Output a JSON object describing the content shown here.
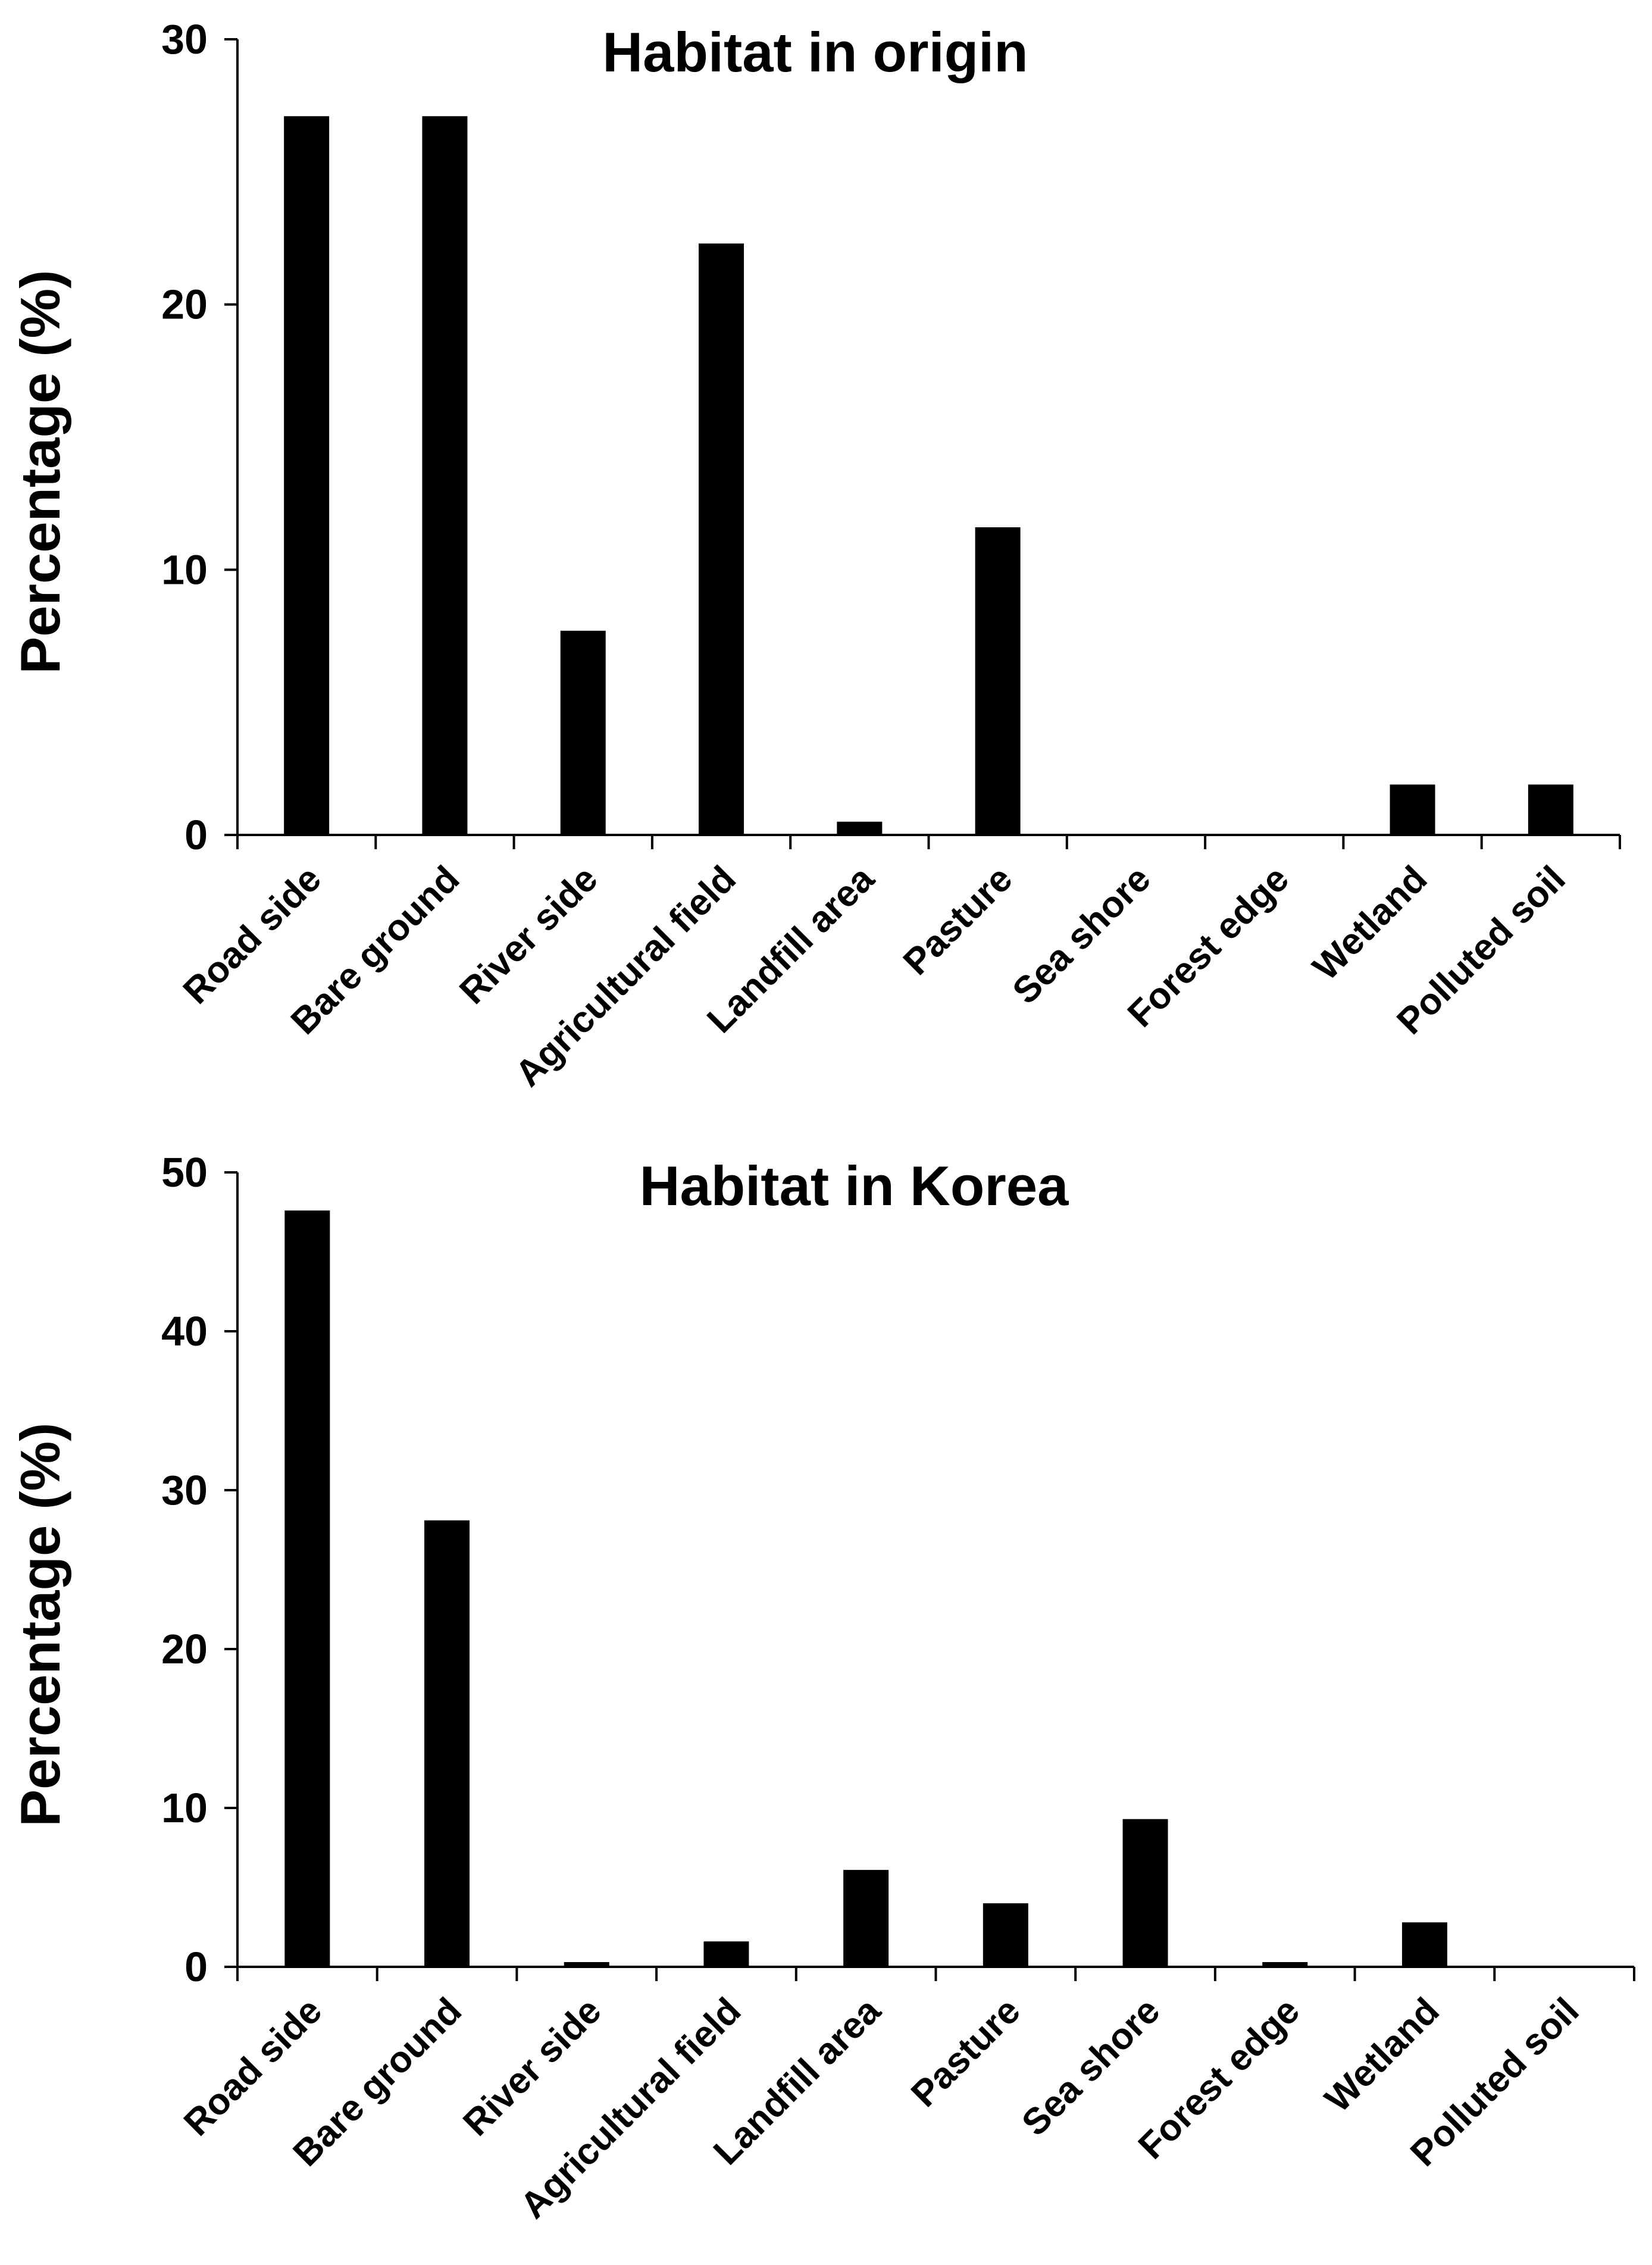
{
  "colors": {
    "bar": "#000000",
    "axis": "#000000",
    "background": "#ffffff"
  },
  "chart_data": [
    {
      "type": "bar",
      "title": "Habitat in origin",
      "xlabel": "",
      "ylabel": "Percentage (%)",
      "ylim": [
        0,
        30
      ],
      "yticks": [
        0,
        10,
        20,
        30
      ],
      "grid": false,
      "categories": [
        "Road side",
        "Bare ground",
        "River side",
        "Agricultural field",
        "Landfill area",
        "Pasture",
        "Sea shore",
        "Forest edge",
        "Wetland",
        "Polluted soil"
      ],
      "values": [
        27.1,
        27.1,
        7.7,
        22.3,
        0.5,
        11.6,
        0,
        0,
        1.9,
        1.9
      ]
    },
    {
      "type": "bar",
      "title": "Habitat in Korea",
      "xlabel": "",
      "ylabel": "Percentage (%)",
      "ylim": [
        0,
        50
      ],
      "yticks": [
        0,
        10,
        20,
        30,
        40,
        50
      ],
      "grid": false,
      "categories": [
        "Road side",
        "Bare ground",
        "River side",
        "Agricultural field",
        "Landfill area",
        "Pasture",
        "Sea shore",
        "Forest edge",
        "Wetland",
        "Polluted soil"
      ],
      "values": [
        47.6,
        28.1,
        0.3,
        1.6,
        6.1,
        4.0,
        9.3,
        0.3,
        2.8,
        0
      ]
    }
  ]
}
